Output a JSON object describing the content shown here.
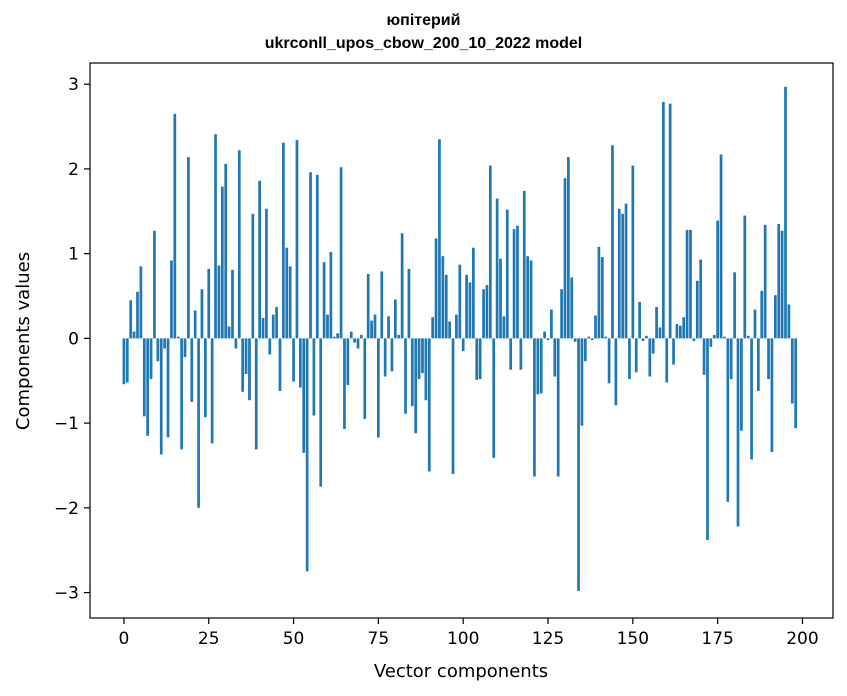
{
  "chart_data": {
    "type": "bar",
    "title_line1": "юпітерий",
    "title_line2": "ukrconll_upos_cbow_200_10_2022 model",
    "xlabel": "Vector components",
    "ylabel": "Components values",
    "xlim": [
      -10,
      209
    ],
    "ylim": [
      -3.3,
      3.25
    ],
    "xticks": [
      0,
      25,
      50,
      75,
      100,
      125,
      150,
      175,
      200
    ],
    "yticks": [
      -3,
      -2,
      -1,
      0,
      1,
      2,
      3
    ],
    "xtick_labels": [
      "0",
      "25",
      "50",
      "75",
      "100",
      "125",
      "150",
      "175",
      "200"
    ],
    "ytick_labels": [
      "−3",
      "−2",
      "−1",
      "0",
      "1",
      "2",
      "3"
    ],
    "bar_color": "#1f77b4",
    "grid": false,
    "values": [
      -0.54,
      -0.52,
      0.45,
      0.08,
      0.55,
      0.85,
      -0.92,
      -1.15,
      -0.48,
      1.27,
      -0.27,
      -1.37,
      -0.12,
      -1.17,
      0.92,
      2.65,
      0.02,
      -1.31,
      -0.22,
      2.14,
      -0.75,
      0.33,
      -2.0,
      0.58,
      -0.93,
      0.82,
      -1.24,
      2.41,
      0.86,
      1.79,
      2.06,
      0.14,
      0.81,
      -0.12,
      2.22,
      -0.63,
      -0.42,
      -0.73,
      1.47,
      -1.31,
      1.86,
      0.24,
      1.53,
      -0.19,
      0.28,
      0.37,
      -0.62,
      2.31,
      1.07,
      0.85,
      -0.51,
      2.34,
      -0.58,
      -1.35,
      -2.75,
      1.96,
      -0.91,
      1.93,
      -1.75,
      0.9,
      0.28,
      1.02,
      0.02,
      0.06,
      2.02,
      -1.07,
      -0.55,
      0.08,
      -0.05,
      -0.12,
      0.04,
      -0.95,
      0.76,
      0.21,
      0.28,
      -1.17,
      0.79,
      -0.45,
      0.26,
      -0.39,
      0.46,
      0.04,
      1.24,
      -0.89,
      0.82,
      -0.8,
      -1.12,
      -0.48,
      -0.41,
      -0.73,
      -1.57,
      0.25,
      1.18,
      2.35,
      0.97,
      0.75,
      0.2,
      -1.6,
      0.28,
      0.87,
      -0.15,
      0.75,
      0.66,
      1.07,
      -0.49,
      -0.48,
      0.58,
      0.63,
      2.04,
      -1.41,
      1.65,
      0.94,
      0.26,
      1.52,
      -0.37,
      1.29,
      1.33,
      -0.37,
      1.74,
      0.97,
      0.92,
      -1.63,
      -0.66,
      -0.65,
      0.08,
      -0.02,
      0.34,
      -0.45,
      -1.63,
      0.58,
      1.89,
      2.14,
      0.72,
      -0.04,
      -2.98,
      -1.03,
      -0.27,
      0.02,
      -0.02,
      0.27,
      1.08,
      0.96,
      0.02,
      -0.53,
      2.28,
      -0.79,
      1.53,
      1.47,
      1.59,
      -0.48,
      2.04,
      -0.4,
      0.43,
      -0.03,
      0.03,
      -0.45,
      -0.18,
      0.37,
      0.13,
      2.79,
      -0.52,
      2.77,
      -0.31,
      0.17,
      0.15,
      0.25,
      1.28,
      1.28,
      -0.03,
      0.68,
      0.93,
      -0.43,
      -2.38,
      -0.1,
      0.04,
      1.39,
      2.17,
      0.02,
      -1.93,
      -0.48,
      0.78,
      -2.22,
      -1.09,
      1.45,
      0.03,
      -1.43,
      0.34,
      -0.62,
      0.56,
      1.34,
      -0.48,
      -1.34,
      0.51,
      1.35,
      1.27,
      2.97,
      0.4,
      -0.77,
      -1.06
    ]
  }
}
